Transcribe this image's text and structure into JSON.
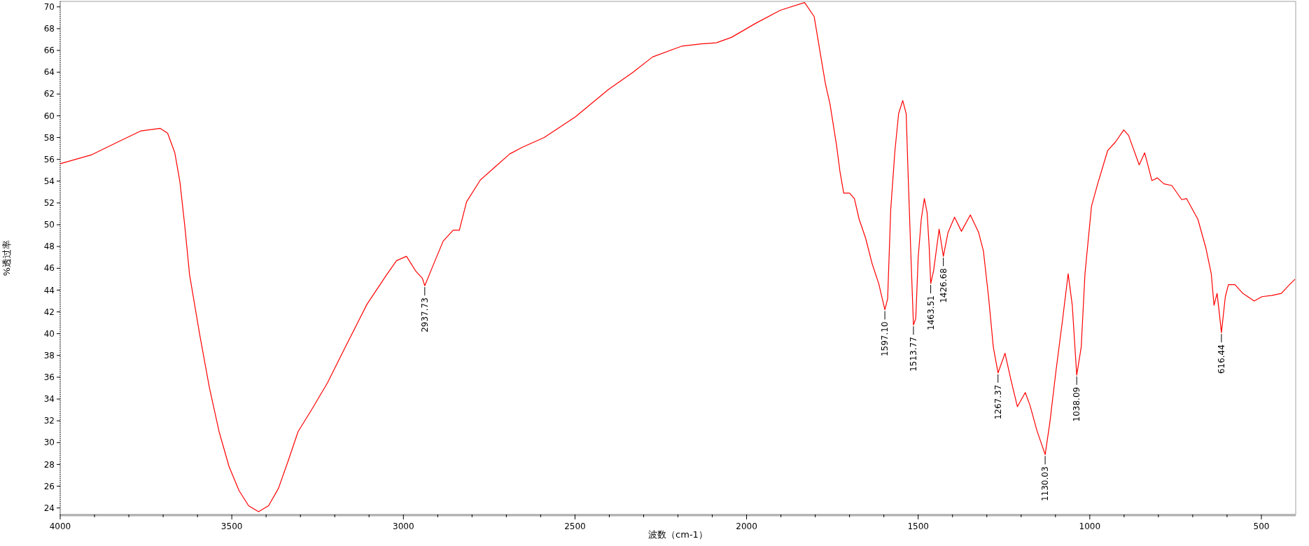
{
  "chart_data": {
    "type": "line",
    "xlabel": "波数（cm-1）",
    "ylabel": "%透过率",
    "xlim": [
      4000,
      400
    ],
    "ylim": [
      23.4,
      70.5
    ],
    "xticks": [
      4000,
      {
        "value": 3900,
        "label": null
      },
      {
        "value": 3800,
        "label": null
      },
      {
        "value": 3700,
        "label": null
      },
      {
        "value": 3600,
        "label": null
      },
      3500,
      {
        "value": 3400,
        "label": null
      },
      {
        "value": 3300,
        "label": null
      },
      {
        "value": 3200,
        "label": null
      },
      {
        "value": 3100,
        "label": null
      },
      3000,
      {
        "value": 2900,
        "label": null
      },
      {
        "value": 2800,
        "label": null
      },
      {
        "value": 2700,
        "label": null
      },
      {
        "value": 2600,
        "label": null
      },
      2500,
      {
        "value": 2400,
        "label": null
      },
      {
        "value": 2300,
        "label": null
      },
      {
        "value": 2200,
        "label": null
      },
      {
        "value": 2100,
        "label": null
      },
      2000,
      {
        "value": 1900,
        "label": null
      },
      {
        "value": 1800,
        "label": null
      },
      {
        "value": 1700,
        "label": null
      },
      {
        "value": 1600,
        "label": null
      },
      1500,
      {
        "value": 1400,
        "label": null
      },
      {
        "value": 1300,
        "label": null
      },
      {
        "value": 1200,
        "label": null
      },
      {
        "value": 1100,
        "label": null
      },
      1000,
      {
        "value": 900,
        "label": null
      },
      {
        "value": 800,
        "label": null
      },
      {
        "value": 700,
        "label": null
      },
      {
        "value": 600,
        "label": null
      },
      500
    ],
    "yticks": [
      24,
      26,
      28,
      30,
      32,
      34,
      36,
      38,
      40,
      42,
      44,
      46,
      48,
      50,
      52,
      54,
      56,
      58,
      60,
      62,
      64,
      66,
      68,
      70
    ],
    "grid": false,
    "marker": "none",
    "line_style": "solid",
    "series": [
      {
        "color": "#ff0000",
        "x": [
          4000,
          3910,
          3838,
          3766,
          3709,
          3687,
          3666,
          3651,
          3637,
          3623,
          3594,
          3565,
          3537,
          3508,
          3479,
          3451,
          3422,
          3393,
          3364,
          3336,
          3307,
          3264,
          3221,
          3164,
          3106,
          3049,
          3020,
          2991,
          2963,
          2945,
          2937.73,
          2913,
          2884,
          2855,
          2837,
          2816,
          2776,
          2733,
          2690,
          2654,
          2590,
          2499,
          2403,
          2331,
          2274,
          2188,
          2131,
          2088,
          2044,
          1973,
          1901,
          1831,
          1803,
          1784,
          1770,
          1757,
          1738,
          1728,
          1717,
          1700,
          1686,
          1672,
          1653,
          1634,
          1615,
          1597.1,
          1589,
          1580,
          1568,
          1557,
          1545,
          1535,
          1529,
          1521,
          1513.77,
          1507,
          1500,
          1491,
          1482,
          1474,
          1468,
          1463.51,
          1455,
          1439,
          1426.68,
          1413,
          1394,
          1374,
          1348,
          1324,
          1310,
          1295,
          1281,
          1267.37,
          1247,
          1230,
          1211,
          1188,
          1174,
          1154,
          1130.03,
          1117,
          1098,
          1080,
          1063,
          1051,
          1038.09,
          1025,
          1014,
          995,
          977,
          948,
          925,
          901,
          887,
          856,
          840,
          819,
          803,
          784,
          761,
          732,
          718,
          685,
          662,
          646,
          638,
          629,
          624,
          616.44,
          605,
          596,
          577,
          554,
          521,
          498,
          470,
          442,
          418,
          402
        ],
        "values": [
          55.6,
          56.4,
          57.5,
          58.6,
          58.85,
          58.4,
          56.6,
          53.9,
          49.9,
          45.4,
          40.0,
          35.0,
          31.0,
          27.8,
          25.6,
          24.2,
          23.65,
          24.2,
          25.8,
          28.3,
          31.0,
          33.2,
          35.5,
          39.1,
          42.7,
          45.4,
          46.7,
          47.1,
          45.7,
          45.1,
          44.4,
          46.3,
          48.5,
          49.5,
          49.5,
          52.1,
          54.1,
          55.3,
          56.5,
          57.1,
          58.0,
          59.9,
          62.4,
          64.0,
          65.4,
          66.4,
          66.6,
          66.7,
          67.2,
          68.5,
          69.7,
          70.4,
          69.1,
          65.5,
          62.9,
          61.1,
          57.3,
          54.9,
          52.9,
          52.9,
          52.4,
          50.5,
          48.75,
          46.4,
          44.6,
          42.2,
          43.2,
          51.4,
          56.7,
          60.2,
          61.4,
          60.2,
          54.3,
          47.0,
          40.8,
          41.4,
          47.0,
          50.5,
          52.4,
          51.1,
          48.0,
          44.6,
          45.8,
          49.6,
          47.1,
          49.3,
          50.7,
          49.4,
          50.9,
          49.3,
          47.6,
          43.4,
          38.75,
          36.4,
          38.2,
          35.8,
          33.3,
          34.6,
          33.4,
          31.1,
          28.9,
          31.7,
          36.7,
          41.1,
          45.5,
          42.6,
          36.2,
          38.75,
          45.5,
          51.7,
          53.75,
          56.8,
          57.6,
          58.7,
          58.2,
          55.5,
          56.6,
          54.05,
          54.3,
          53.75,
          53.6,
          52.3,
          52.4,
          50.5,
          47.9,
          45.5,
          42.6,
          43.7,
          42.3,
          40.1,
          43.4,
          44.5,
          44.5,
          43.7,
          43.0,
          43.4,
          43.5,
          43.7,
          44.5,
          45.0
        ]
      }
    ],
    "annotations": [
      {
        "text": "2937.73",
        "x": 2937.73,
        "y": 44.4
      },
      {
        "text": "1597.10",
        "x": 1597.1,
        "y": 42.2
      },
      {
        "text": "1513.77",
        "x": 1513.77,
        "y": 40.8
      },
      {
        "text": "1463.51",
        "x": 1463.51,
        "y": 44.6
      },
      {
        "text": "1426.68",
        "x": 1426.68,
        "y": 47.1
      },
      {
        "text": "1267.37",
        "x": 1267.37,
        "y": 36.4
      },
      {
        "text": "1130.03",
        "x": 1130.03,
        "y": 28.9
      },
      {
        "text": "1038.09",
        "x": 1038.09,
        "y": 36.2
      },
      {
        "text": "616.44",
        "x": 616.44,
        "y": 40.1
      }
    ]
  }
}
